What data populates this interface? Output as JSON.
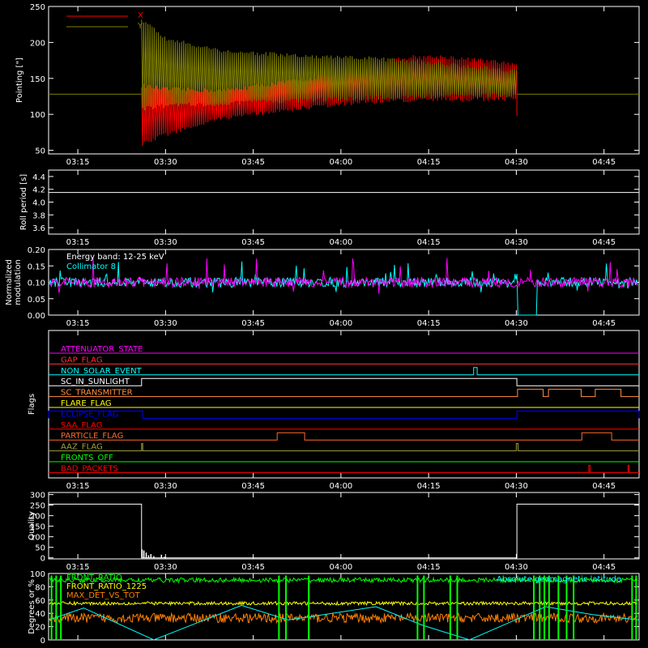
{
  "colors": {
    "background": "#000000",
    "axes": "#ffffff",
    "x_series": "#ff0000",
    "y_series": "#808000",
    "magenta": "#ff00ff",
    "cyan": "#00ffff",
    "green": "#00ff00",
    "yellow": "#ffff00",
    "orange": "#ff8000"
  },
  "chart_data": [
    {
      "id": "pointing",
      "type": "line",
      "ylabel": "Pointing [\"]",
      "ylim": [
        45,
        250
      ],
      "yticks": [
        50,
        100,
        150,
        200,
        250
      ],
      "x_tick_labels": [
        "03:15",
        "03:30",
        "03:45",
        "04:00",
        "04:15",
        "04:30",
        "04:45"
      ],
      "x_tick_times_min": [
        195,
        210,
        225,
        240,
        255,
        270,
        285
      ],
      "xlim_min": [
        190,
        291
      ],
      "legend": [
        {
          "name": "X",
          "color": "#ff0000"
        },
        {
          "name": "Y",
          "color": "#808000"
        }
      ],
      "baseline_value": 128,
      "active_window_min": [
        205.9,
        270.1
      ],
      "series": [
        {
          "name": "X",
          "envelope_upper": [
            [
              206,
              140
            ],
            [
              210,
              135
            ],
            [
              220,
              133
            ],
            [
              235,
              150
            ],
            [
              245,
              170
            ],
            [
              252,
              180
            ],
            [
              258,
              180
            ],
            [
              265,
              174
            ],
            [
              270,
              170
            ]
          ],
          "envelope_lower": [
            [
              206,
              58
            ],
            [
              210,
              72
            ],
            [
              220,
              95
            ],
            [
              235,
              110
            ],
            [
              245,
              118
            ],
            [
              255,
              120
            ],
            [
              265,
              121
            ],
            [
              270,
              122
            ]
          ]
        },
        {
          "name": "Y",
          "envelope_upper": [
            [
              206,
              232
            ],
            [
              210,
              205
            ],
            [
              220,
              188
            ],
            [
              235,
              180
            ],
            [
              245,
              178
            ],
            [
              255,
              172
            ],
            [
              265,
              165
            ],
            [
              270,
              160
            ]
          ],
          "envelope_lower": [
            [
              206,
              108
            ],
            [
              210,
              112
            ],
            [
              220,
              115
            ],
            [
              235,
              120
            ],
            [
              245,
              123
            ],
            [
              255,
              125
            ],
            [
              265,
              126
            ],
            [
              270,
              126
            ]
          ]
        }
      ]
    },
    {
      "id": "roll",
      "type": "line",
      "ylabel": "Roll period [s]",
      "ylim": [
        3.5,
        4.5
      ],
      "yticks": [
        3.6,
        3.8,
        4.0,
        4.2,
        4.4
      ],
      "ytick_labels": [
        "3.6",
        "3.8",
        "4.0",
        "4.2",
        "4.4"
      ],
      "x_tick_labels": [
        "03:15",
        "03:30",
        "03:45",
        "04:00",
        "04:15",
        "04:30",
        "04:45"
      ],
      "series": [
        {
          "name": "",
          "constant": 4.15
        }
      ]
    },
    {
      "id": "modulation",
      "type": "line",
      "ylabel_lines": [
        "Normalized",
        "modulation"
      ],
      "ylim": [
        0,
        0.2
      ],
      "yticks": [
        0,
        0.05,
        0.1,
        0.15,
        0.2
      ],
      "ytick_labels": [
        "0.00",
        "0.05",
        "0.10",
        "0.15",
        "0.20"
      ],
      "x_tick_labels": [
        "03:15",
        "03:30",
        "03:45",
        "04:00",
        "04:15",
        "04:30",
        "04:45"
      ],
      "annotations": [
        "Energy band: 12-25 keV",
        "Collimator 8"
      ],
      "series": [
        {
          "name": "Collimator 8",
          "color": "#00ffff",
          "mean": 0.1,
          "gap_min": [
            270.2,
            273.5
          ],
          "gap_value": 0.0
        },
        {
          "name": "",
          "color": "#ff00ff",
          "mean": 0.1
        }
      ]
    },
    {
      "id": "flags",
      "type": "line",
      "ylabel": "Flags",
      "x_tick_labels": [
        "03:15",
        "03:30",
        "03:45",
        "04:00",
        "04:15",
        "04:30",
        "04:45"
      ],
      "flags": [
        {
          "name": "ATTENUATOR_STATE",
          "color": "#ff00ff",
          "segments": []
        },
        {
          "name": "GAP_FLAG",
          "color": "#ff3030",
          "segments": []
        },
        {
          "name": "NON_SOLAR_EVENT",
          "color": "#00ffff",
          "segments": [
            [
              262.7,
              263.3
            ]
          ]
        },
        {
          "name": "SC_IN_SUNLIGHT",
          "color": "#ffffff",
          "segments": [
            [
              205.9,
              270.1
            ]
          ]
        },
        {
          "name": "SC_TRANSMITTER",
          "color": "#ff9040",
          "segments": [
            [
              270.2,
              274.6
            ],
            [
              275.5,
              281.1
            ],
            [
              283.5,
              287.9
            ]
          ]
        },
        {
          "name": "FLARE_FLAG",
          "color": "#ffff00",
          "segments": []
        },
        {
          "name": "ECLIPSE_FLAG",
          "color": "#0000ff",
          "segments": [
            [
              190,
              206.1
            ],
            [
              270.1,
              291
            ]
          ]
        },
        {
          "name": "SAA_FLAG",
          "color": "#ff0000",
          "segments": []
        },
        {
          "name": "PARTICLE_FLAG",
          "color": "#ff6a2a",
          "segments": [
            [
              229.1,
              233.8
            ],
            [
              281.2,
              286.3
            ]
          ]
        },
        {
          "name": "AAZ_FLAG",
          "color": "#a0a040",
          "segments": [
            [
              205.9,
              206.1
            ],
            [
              270.0,
              270.3
            ]
          ]
        },
        {
          "name": "FRONTS_OFF",
          "color": "#00ff00",
          "segments": []
        },
        {
          "name": "BAD_PACKETS",
          "color": "#ff0000",
          "segments": [
            [
              282.4,
              282.6
            ],
            [
              289.1,
              289.3
            ]
          ]
        }
      ]
    },
    {
      "id": "quality",
      "type": "line",
      "ylabel": "Quality",
      "ylim": [
        -5,
        310
      ],
      "yticks": [
        0,
        50,
        100,
        150,
        200,
        250,
        300
      ],
      "ytick_labels": [
        "0",
        "50",
        "100",
        "150",
        "200",
        "250",
        "300"
      ],
      "x_tick_labels": [
        "03:15",
        "03:30",
        "03:45",
        "04:00",
        "04:15",
        "04:30",
        "04:45"
      ],
      "series": [
        {
          "name": "",
          "high_value": 255,
          "high_windows_min": [
            [
              190,
              205.9
            ],
            [
              270.1,
              291
            ]
          ],
          "spikes": [
            [
              206.0,
              40
            ],
            [
              206.3,
              35
            ],
            [
              206.7,
              25
            ],
            [
              207.1,
              12
            ],
            [
              207.5,
              18
            ],
            [
              208.0,
              8
            ],
            [
              209.3,
              15
            ],
            [
              209.8,
              5
            ]
          ]
        }
      ]
    },
    {
      "id": "latitude",
      "type": "line",
      "ylabel": "Degrees or %",
      "ylim": [
        0,
        100
      ],
      "yticks": [
        0,
        20,
        40,
        60,
        80,
        100
      ],
      "ytick_labels": [
        "0",
        "20",
        "40",
        "60",
        "80",
        "100"
      ],
      "x_tick_labels": [
        "03:15",
        "03:30",
        "03:45",
        "04:00",
        "04:15",
        "04:30",
        "04:45"
      ],
      "legend": [
        {
          "name": "FRONT_RATIO",
          "color": "#00ff00"
        },
        {
          "name": "FRONT_RATIO_1225",
          "color": "#ffff00"
        },
        {
          "name": "MAX_DET_VS_TOT",
          "color": "#ff8000"
        },
        {
          "name": "Absolute geomagnetic latitude",
          "color": "#00ffff"
        }
      ],
      "series": [
        {
          "name": "FRONT_RATIO",
          "color": "#00ff00",
          "mean": 90
        },
        {
          "name": "FRONT_RATIO_1225",
          "color": "#ffff00",
          "mean": 55
        },
        {
          "name": "MAX_DET_VS_TOT",
          "color": "#ff8000",
          "mean": 33
        },
        {
          "name": "Absolute geomagnetic latitude",
          "color": "#00ffff",
          "points": [
            [
              190,
              30
            ],
            [
              196,
              48
            ],
            [
              208,
              0
            ],
            [
              223,
              52
            ],
            [
              231,
              30
            ],
            [
              246,
              50
            ],
            [
              254,
              22
            ],
            [
              262,
              0
            ],
            [
              275,
              50
            ],
            [
              283,
              38
            ],
            [
              291,
              30
            ]
          ]
        }
      ],
      "green_drop_times_min": [
        190.5,
        191.3,
        192.1,
        229.4,
        230.6,
        234.5,
        253.1,
        254.2,
        258.7,
        259.9,
        273.0,
        274.0,
        274.8,
        275.6,
        277.2,
        278.6,
        279.8,
        289.8,
        290.5
      ]
    }
  ]
}
